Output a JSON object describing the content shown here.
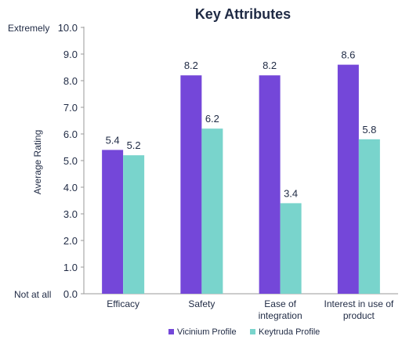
{
  "chart_data": {
    "type": "bar",
    "title": "Key Attributes",
    "ylabel": "Average Rating",
    "xlabel": "",
    "ylim": [
      0,
      10
    ],
    "yticks": [
      "0.0",
      "1.0",
      "2.0",
      "3.0",
      "4.0",
      "5.0",
      "6.0",
      "7.0",
      "8.0",
      "9.0",
      "10.0"
    ],
    "y_top_anchor": "Extremely",
    "y_bottom_anchor": "Not at all",
    "categories": [
      "Efficacy",
      "Safety",
      "Ease of integration",
      "Interest in use of product"
    ],
    "category_lines": [
      [
        "Efficacy"
      ],
      [
        "Safety"
      ],
      [
        "Ease of",
        "integration"
      ],
      [
        "Interest in use of",
        "product"
      ]
    ],
    "series": [
      {
        "name": "Vicinium Profile",
        "color": "#7447d9",
        "values": [
          5.4,
          8.2,
          8.2,
          8.6
        ],
        "labels": [
          "5.4",
          "8.2",
          "8.2",
          "8.6"
        ]
      },
      {
        "name": "Keytruda Profile",
        "color": "#79d4cc",
        "values": [
          5.2,
          6.2,
          3.4,
          5.8
        ],
        "labels": [
          "5.2",
          "6.2",
          "3.4",
          "5.8"
        ]
      }
    ],
    "grid": false,
    "legend_position": "bottom"
  }
}
